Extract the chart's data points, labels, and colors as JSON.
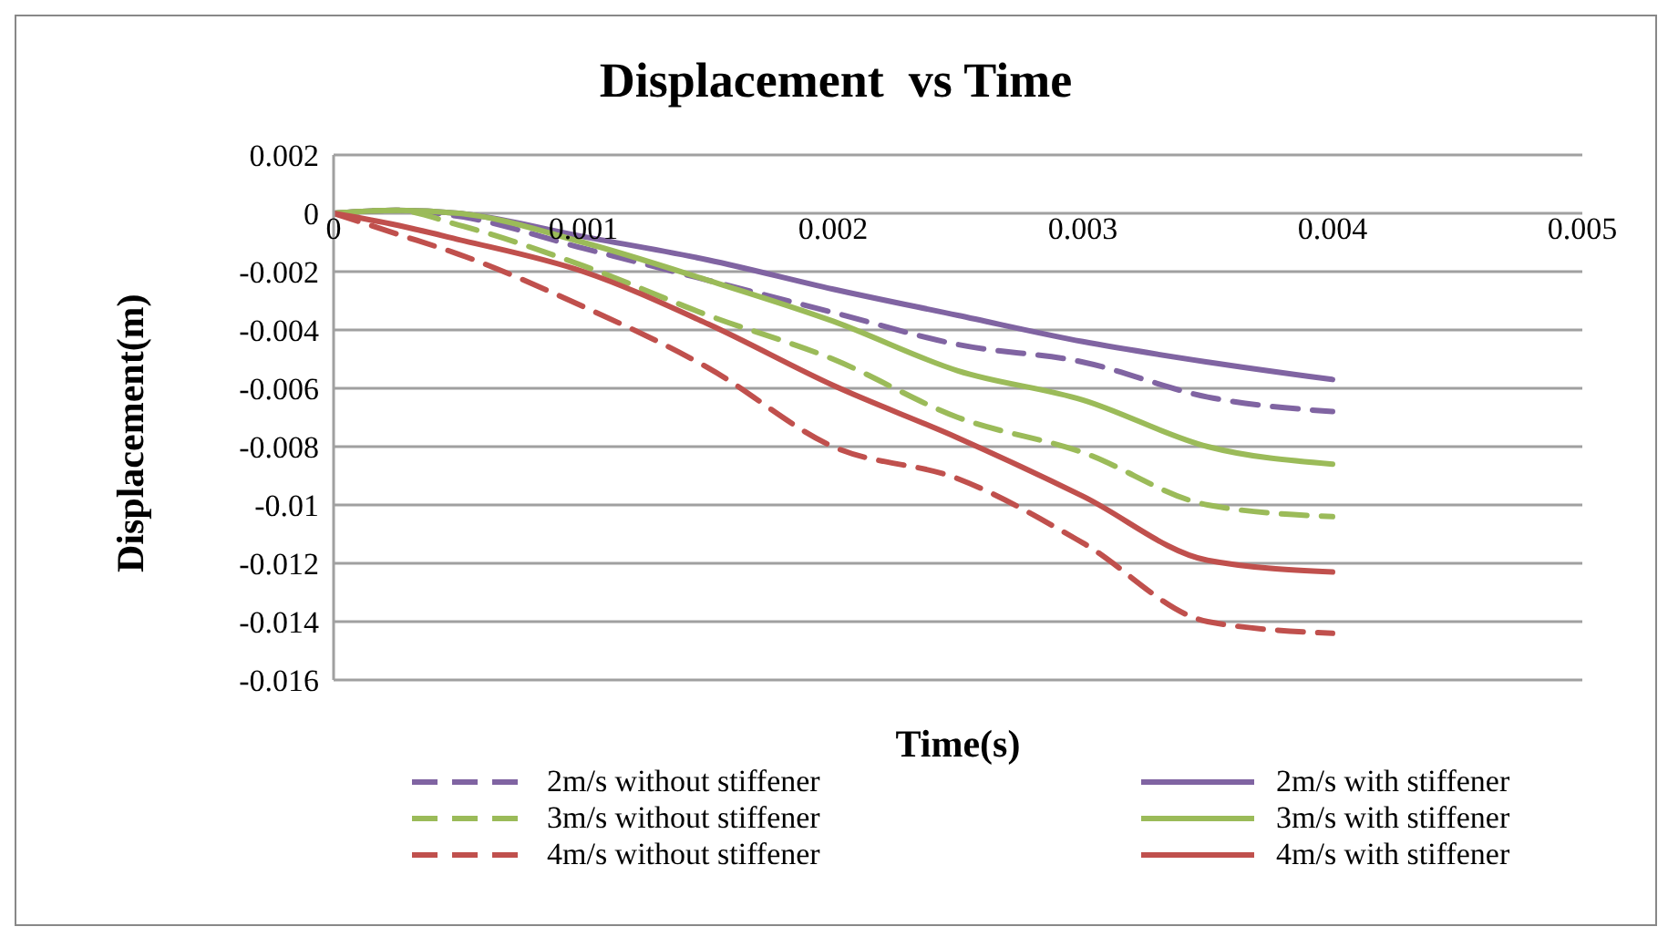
{
  "chart_data": {
    "type": "line",
    "title": "Displacement  vs Time",
    "xlabel": "Time(s)",
    "ylabel": "Displacement(m)",
    "xlim": [
      0,
      0.005
    ],
    "xticks": [
      0,
      0.001,
      0.002,
      0.003,
      0.004,
      0.005
    ],
    "ylim": [
      -0.016,
      0.002
    ],
    "yticks": [
      0.002,
      0,
      -0.002,
      -0.004,
      -0.006,
      -0.008,
      -0.01,
      -0.012,
      -0.014,
      -0.016
    ],
    "grid": "y",
    "legend": "bottom",
    "marker": "none",
    "x": [
      0,
      0.00025,
      0.0005,
      0.001,
      0.0015,
      0.002,
      0.0025,
      0.003,
      0.0035,
      0.004
    ],
    "series": [
      {
        "name": "2m/s without stiffener",
        "color": "#8064a2",
        "line_style": "dashed",
        "values": [
          0,
          0.0001,
          -0.0001,
          -0.0012,
          -0.0023,
          -0.0034,
          -0.0045,
          -0.0051,
          -0.0063,
          -0.0068
        ]
      },
      {
        "name": "2m/s with stiffener",
        "color": "#8064a2",
        "line_style": "solid",
        "values": [
          0,
          0.0001,
          0,
          -0.0008,
          -0.0016,
          -0.0026,
          -0.0035,
          -0.0044,
          -0.0051,
          -0.0057
        ]
      },
      {
        "name": "3m/s without stiffener",
        "color": "#9bbb59",
        "line_style": "dashed",
        "values": [
          0,
          0.0001,
          -0.0004,
          -0.0018,
          -0.0035,
          -0.005,
          -0.007,
          -0.0082,
          -0.01,
          -0.0104
        ]
      },
      {
        "name": "3m/s with stiffener",
        "color": "#9bbb59",
        "line_style": "solid",
        "values": [
          0,
          0.0001,
          0,
          -0.001,
          -0.0023,
          -0.0037,
          -0.0054,
          -0.0064,
          -0.008,
          -0.0086
        ]
      },
      {
        "name": "4m/s without stiffener",
        "color": "#c0504d",
        "line_style": "dashed",
        "values": [
          0,
          -0.0007,
          -0.0014,
          -0.0032,
          -0.0053,
          -0.008,
          -0.0091,
          -0.0113,
          -0.014,
          -0.0144
        ]
      },
      {
        "name": "4m/s with stiffener",
        "color": "#c0504d",
        "line_style": "solid",
        "values": [
          0,
          -0.0004,
          -0.0009,
          -0.002,
          -0.0038,
          -0.0059,
          -0.0077,
          -0.0097,
          -0.0119,
          -0.0123
        ]
      }
    ]
  }
}
